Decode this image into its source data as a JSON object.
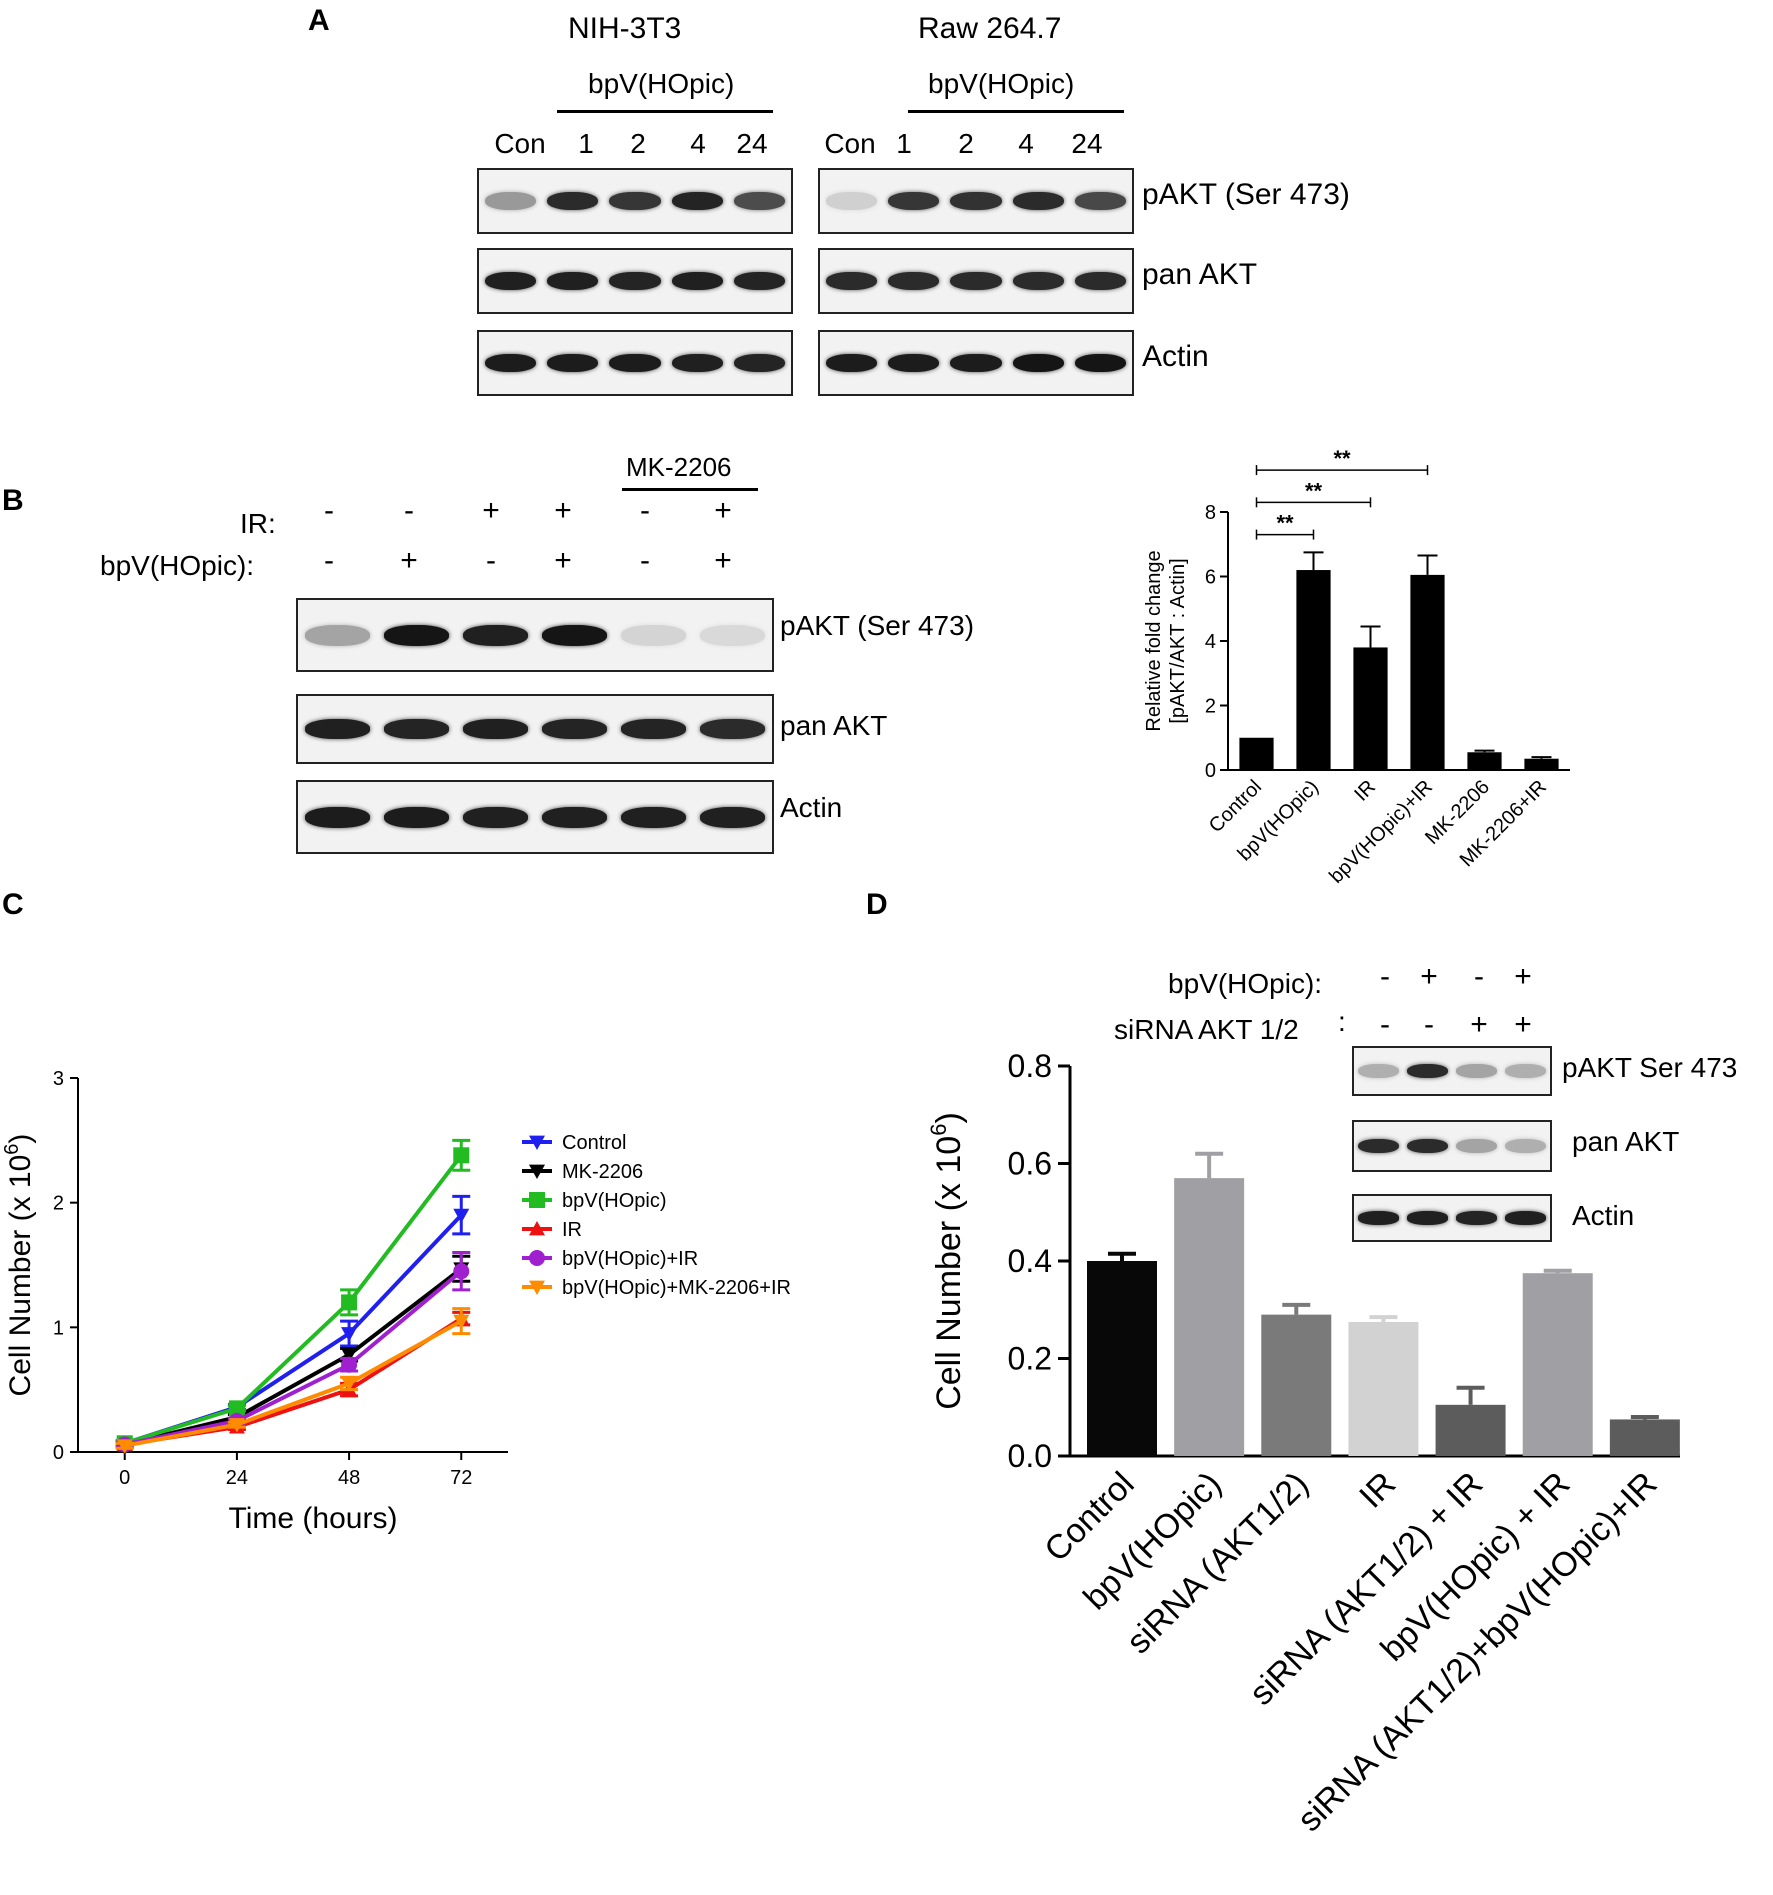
{
  "panels": {
    "a": "A",
    "b": "B",
    "c": "C",
    "d": "D"
  },
  "panel_a": {
    "cell_lines": [
      "NIH-3T3",
      "Raw 264.7"
    ],
    "treatment": "bpV(HOpic)",
    "lanes": [
      "Con",
      "1",
      "2",
      "4",
      "24"
    ],
    "row_labels": [
      "pAKT (Ser 473)",
      "pan AKT",
      "Actin"
    ],
    "band_intensity": {
      "nih_pakt": [
        0.35,
        0.85,
        0.8,
        0.88,
        0.7
      ],
      "nih_panakt": [
        0.9,
        0.9,
        0.88,
        0.9,
        0.88
      ],
      "nih_actin": [
        0.92,
        0.92,
        0.92,
        0.9,
        0.88
      ],
      "raw_pakt": [
        0.1,
        0.8,
        0.82,
        0.85,
        0.72
      ],
      "raw_panakt": [
        0.85,
        0.85,
        0.85,
        0.85,
        0.85
      ],
      "raw_actin": [
        0.92,
        0.92,
        0.92,
        0.95,
        0.95
      ]
    }
  },
  "panel_b": {
    "inhibitor": "MK-2206",
    "ir_label": "IR:",
    "bpv_label": "bpV(HOpic):",
    "ir_signs": [
      "-",
      "-",
      "+",
      "+",
      "-",
      "+"
    ],
    "bpv_signs": [
      "-",
      "+",
      "-",
      "+",
      "-",
      "+"
    ],
    "row_labels": [
      "pAKT (Ser 473)",
      "pan AKT",
      "Actin"
    ],
    "band_intensity": {
      "pakt": [
        0.3,
        0.95,
        0.9,
        0.95,
        0.08,
        0.06
      ],
      "panakt": [
        0.9,
        0.88,
        0.9,
        0.88,
        0.88,
        0.85
      ],
      "actin": [
        0.92,
        0.92,
        0.9,
        0.9,
        0.9,
        0.9
      ]
    }
  },
  "panel_d_blot": {
    "bpv_label": "bpV(HOpic):",
    "sirna_label": "siRNA AKT 1/2",
    "bpv_signs": [
      "-",
      "+",
      "-",
      "+"
    ],
    "sirna_signs": [
      "-",
      "-",
      "+",
      "+"
    ],
    "row_labels": [
      "pAKT Ser 473",
      "pan AKT",
      "Actin"
    ],
    "band_intensity": {
      "pakt": [
        0.25,
        0.85,
        0.3,
        0.25
      ],
      "panakt": [
        0.85,
        0.85,
        0.3,
        0.25
      ],
      "actin": [
        0.9,
        0.9,
        0.88,
        0.9
      ]
    }
  },
  "chart_data": [
    {
      "type": "bar",
      "ylabel_lines": [
        "Relative fold change",
        "[pAKT/AKT : Actin]"
      ],
      "categories": [
        "Control",
        "bpV(HOpic)",
        "IR",
        "bpV(HOpic)+IR",
        "MK-2206",
        "MK-2206+IR"
      ],
      "values": [
        1.0,
        6.2,
        3.8,
        6.05,
        0.55,
        0.35
      ],
      "errors": [
        0.0,
        0.55,
        0.65,
        0.6,
        0.05,
        0.05
      ],
      "ylim": [
        0,
        8
      ],
      "yticks": [
        0,
        2,
        4,
        6,
        8
      ],
      "colors": [
        "#000000"
      ],
      "significance": [
        {
          "from": "Control",
          "to": "bpV(HOpic)",
          "label": "**"
        },
        {
          "from": "Control",
          "to": "IR",
          "label": "**"
        },
        {
          "from": "Control",
          "to": "bpV(HOpic)+IR",
          "label": "**"
        }
      ]
    },
    {
      "type": "line",
      "xlabel": "Time (hours)",
      "ylabel": "Cell Number (x 10",
      "ylabel_sup": "6",
      "ylabel_end": ")",
      "x": [
        0,
        24,
        48,
        72
      ],
      "xticks": [
        "0",
        "24",
        "48",
        "72"
      ],
      "yticks": [
        "0",
        "1",
        "2",
        "3"
      ],
      "xlim": [
        -10,
        82
      ],
      "ylim": [
        0,
        3
      ],
      "legend_position": "right",
      "series": [
        {
          "name": "Control",
          "color": "#1f1ff0",
          "marker": "tri-down",
          "values": [
            0.07,
            0.36,
            0.95,
            1.9
          ],
          "errors": [
            0.02,
            0.02,
            0.1,
            0.15
          ]
        },
        {
          "name": "MK-2206",
          "color": "#000000",
          "marker": "tri-down",
          "values": [
            0.06,
            0.28,
            0.78,
            1.47
          ],
          "errors": [
            0.02,
            0.02,
            0.05,
            0.1
          ]
        },
        {
          "name": "bpV(HOpic)",
          "color": "#22bb22",
          "marker": "square",
          "values": [
            0.07,
            0.35,
            1.2,
            2.38
          ],
          "errors": [
            0.02,
            0.02,
            0.1,
            0.12
          ]
        },
        {
          "name": "IR",
          "color": "#ee1111",
          "marker": "tri-up",
          "values": [
            0.06,
            0.2,
            0.5,
            1.07
          ],
          "errors": [
            0.02,
            0.02,
            0.05,
            0.05
          ]
        },
        {
          "name": "bpV(HOpic)+IR",
          "color": "#a020d0",
          "marker": "circle",
          "values": [
            0.06,
            0.25,
            0.7,
            1.45
          ],
          "errors": [
            0.02,
            0.02,
            0.05,
            0.15
          ]
        },
        {
          "name": "bpV(HOpic)+MK-2206+IR",
          "color": "#ff8c00",
          "marker": "tri-down",
          "values": [
            0.05,
            0.22,
            0.55,
            1.05
          ],
          "errors": [
            0.02,
            0.02,
            0.05,
            0.1
          ]
        }
      ]
    },
    {
      "type": "bar",
      "ylabel": "Cell Number (x 10",
      "ylabel_sup": "6",
      "ylabel_end": ")",
      "categories": [
        "Control",
        "bpV(HOpic)",
        "siRNA (AKT1/2)",
        "IR",
        "siRNA (AKT1/2) + IR",
        "bpV(HOpic) + IR",
        "siRNA (AKT1/2)+bpV(HOpic)+IR"
      ],
      "values": [
        0.4,
        0.57,
        0.29,
        0.275,
        0.105,
        0.375,
        0.075
      ],
      "errors": [
        0.015,
        0.05,
        0.02,
        0.01,
        0.035,
        0.005,
        0.005
      ],
      "colors": [
        "#080808",
        "#a0a0a4",
        "#7a7a7a",
        "#d2d2d2",
        "#5c5c5c",
        "#a0a0a4",
        "#5c5c5c"
      ],
      "ylim": [
        0,
        0.8
      ],
      "yticks": [
        "0.0",
        "0.2",
        "0.4",
        "0.6",
        "0.8"
      ]
    }
  ]
}
